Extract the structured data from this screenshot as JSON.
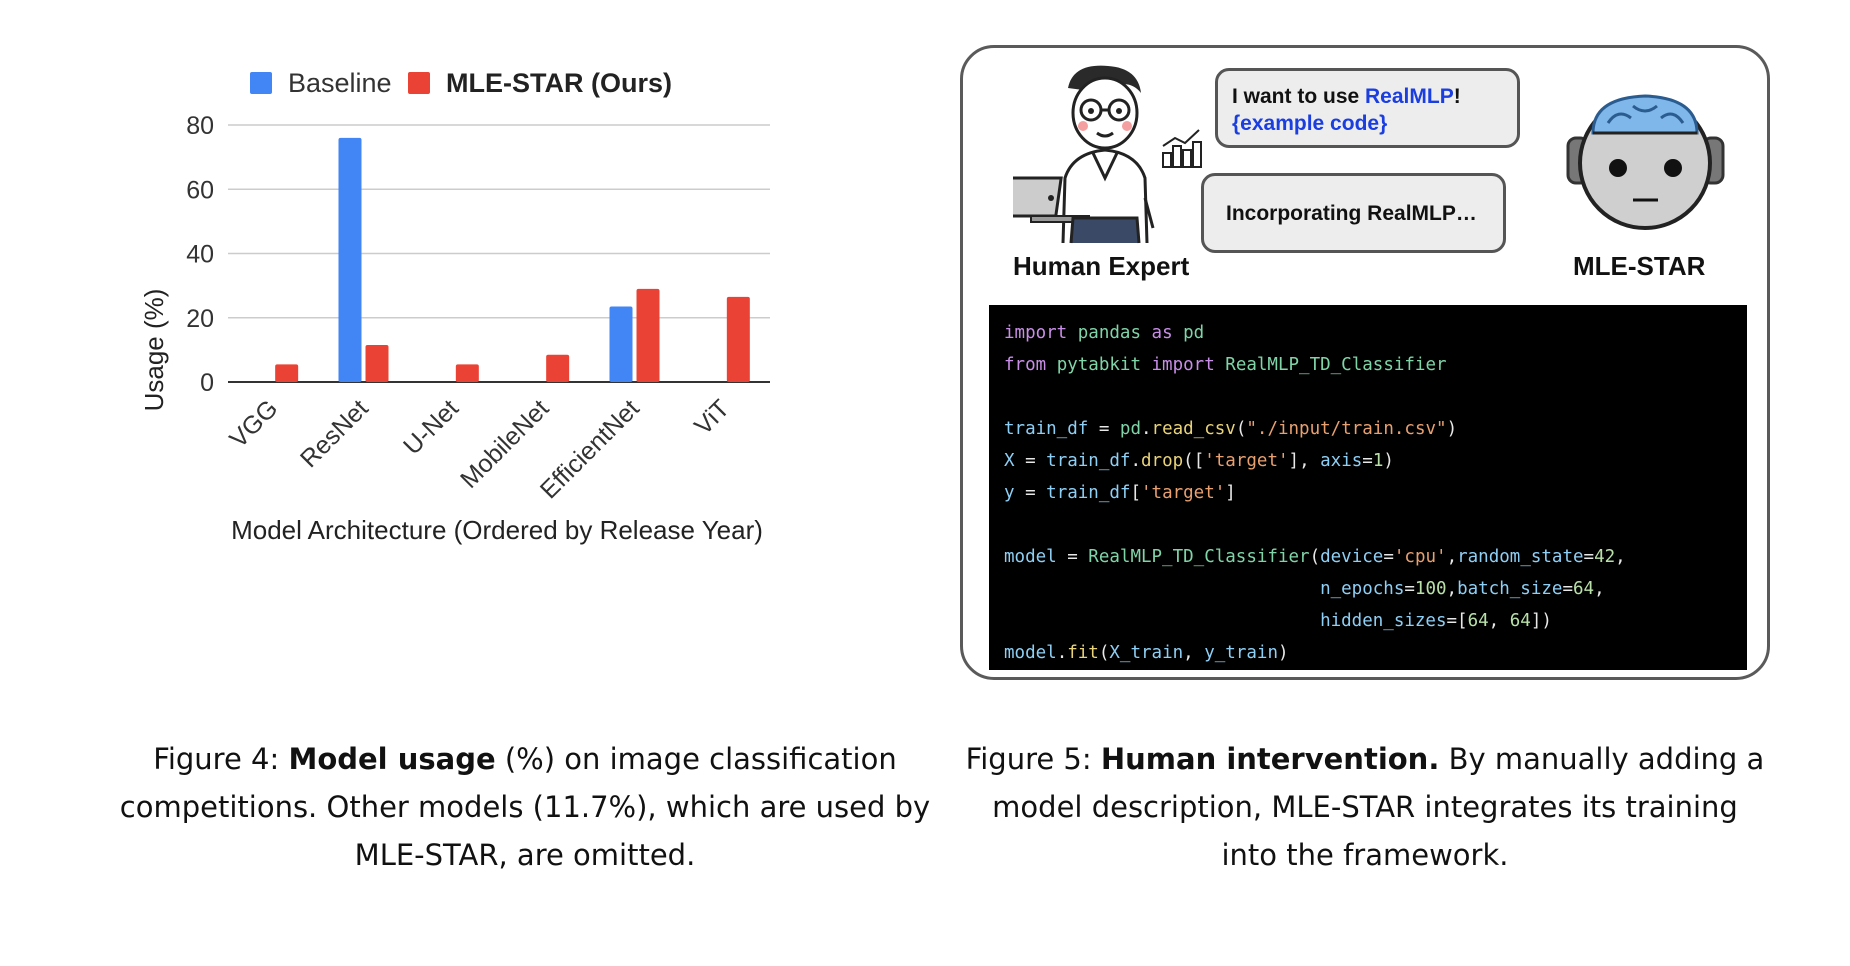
{
  "chart_data": {
    "type": "bar",
    "categories": [
      "VGG",
      "ResNet",
      "U-Net",
      "MobileNet",
      "EfficientNet",
      "ViT"
    ],
    "series": [
      {
        "name": "Baseline",
        "values": [
          0,
          76,
          0,
          0,
          23.5,
          0
        ],
        "color": "#4285f4"
      },
      {
        "name": "MLE-STAR (Ours)",
        "values": [
          5.5,
          11.5,
          5.5,
          8.5,
          29,
          26.5
        ],
        "color": "#ea4335"
      }
    ],
    "xlabel": "Model Architecture (Ordered by Release Year)",
    "ylabel": "Usage (%)",
    "ylim": [
      0,
      80
    ],
    "yticks": [
      0,
      20,
      40,
      60,
      80
    ],
    "grid": true,
    "legend": "top"
  },
  "figure5": {
    "bubble1": {
      "prefix": "I want to use ",
      "model": "RealMLP",
      "suffix": "!",
      "line2": "{example code}"
    },
    "bubble2": "Incorporating RealMLP…",
    "human_label": "Human Expert",
    "robot_label": "MLE-STAR",
    "code_lines": [
      [
        {
          "c": "kw",
          "t": "import "
        },
        {
          "c": "cls",
          "t": "pandas "
        },
        {
          "c": "kw",
          "t": "as "
        },
        {
          "c": "cls",
          "t": "pd"
        }
      ],
      [
        {
          "c": "kw",
          "t": "from "
        },
        {
          "c": "cls",
          "t": "pytabkit "
        },
        {
          "c": "kw",
          "t": "import "
        },
        {
          "c": "cls",
          "t": "RealMLP_TD_Classifier"
        }
      ],
      [],
      [
        {
          "c": "var",
          "t": "train_df "
        },
        {
          "c": "",
          "t": "= "
        },
        {
          "c": "cls",
          "t": "pd"
        },
        {
          "c": "",
          "t": "."
        },
        {
          "c": "fn",
          "t": "read_csv"
        },
        {
          "c": "",
          "t": "("
        },
        {
          "c": "str",
          "t": "\"./input/train.csv\""
        },
        {
          "c": "",
          "t": ")"
        }
      ],
      [
        {
          "c": "var",
          "t": "X "
        },
        {
          "c": "",
          "t": "= "
        },
        {
          "c": "var",
          "t": "train_df"
        },
        {
          "c": "",
          "t": "."
        },
        {
          "c": "fn",
          "t": "drop"
        },
        {
          "c": "",
          "t": "(["
        },
        {
          "c": "str",
          "t": "'target'"
        },
        {
          "c": "",
          "t": "], "
        },
        {
          "c": "arg",
          "t": "axis"
        },
        {
          "c": "",
          "t": "="
        },
        {
          "c": "num",
          "t": "1"
        },
        {
          "c": "",
          "t": ")"
        }
      ],
      [
        {
          "c": "var",
          "t": "y "
        },
        {
          "c": "",
          "t": "= "
        },
        {
          "c": "var",
          "t": "train_df"
        },
        {
          "c": "",
          "t": "["
        },
        {
          "c": "str",
          "t": "'target'"
        },
        {
          "c": "",
          "t": "]"
        }
      ],
      [],
      [
        {
          "c": "var",
          "t": "model "
        },
        {
          "c": "",
          "t": "= "
        },
        {
          "c": "cls",
          "t": "RealMLP_TD_Classifier"
        },
        {
          "c": "",
          "t": "("
        },
        {
          "c": "arg",
          "t": "device"
        },
        {
          "c": "",
          "t": "="
        },
        {
          "c": "str",
          "t": "'cpu'"
        },
        {
          "c": "",
          "t": ","
        },
        {
          "c": "arg",
          "t": "random_state"
        },
        {
          "c": "",
          "t": "="
        },
        {
          "c": "num",
          "t": "42"
        },
        {
          "c": "",
          "t": ","
        }
      ],
      [
        {
          "c": "",
          "t": "                              "
        },
        {
          "c": "arg",
          "t": "n_epochs"
        },
        {
          "c": "",
          "t": "="
        },
        {
          "c": "num",
          "t": "100"
        },
        {
          "c": "",
          "t": ","
        },
        {
          "c": "arg",
          "t": "batch_size"
        },
        {
          "c": "",
          "t": "="
        },
        {
          "c": "num",
          "t": "64"
        },
        {
          "c": "",
          "t": ","
        }
      ],
      [
        {
          "c": "",
          "t": "                              "
        },
        {
          "c": "arg",
          "t": "hidden_sizes"
        },
        {
          "c": "",
          "t": "=["
        },
        {
          "c": "num",
          "t": "64"
        },
        {
          "c": "",
          "t": ", "
        },
        {
          "c": "num",
          "t": "64"
        },
        {
          "c": "",
          "t": "])"
        }
      ],
      [
        {
          "c": "var",
          "t": "model"
        },
        {
          "c": "",
          "t": "."
        },
        {
          "c": "fn",
          "t": "fit"
        },
        {
          "c": "",
          "t": "("
        },
        {
          "c": "var",
          "t": "X_train"
        },
        {
          "c": "",
          "t": ", "
        },
        {
          "c": "var",
          "t": "y_train"
        },
        {
          "c": "",
          "t": ")"
        }
      ]
    ]
  },
  "captions": {
    "fig4": {
      "prefix": "Figure 4: ",
      "bold": "Model usage",
      "rest": " (%) on image classification competitions. Other models (11.7%), which are used by MLE-STAR, are omitted."
    },
    "fig5": {
      "prefix": "Figure 5: ",
      "bold": "Human intervention.",
      "rest": " By manually adding a model description, MLE-STAR integrates its training into the framework."
    }
  }
}
